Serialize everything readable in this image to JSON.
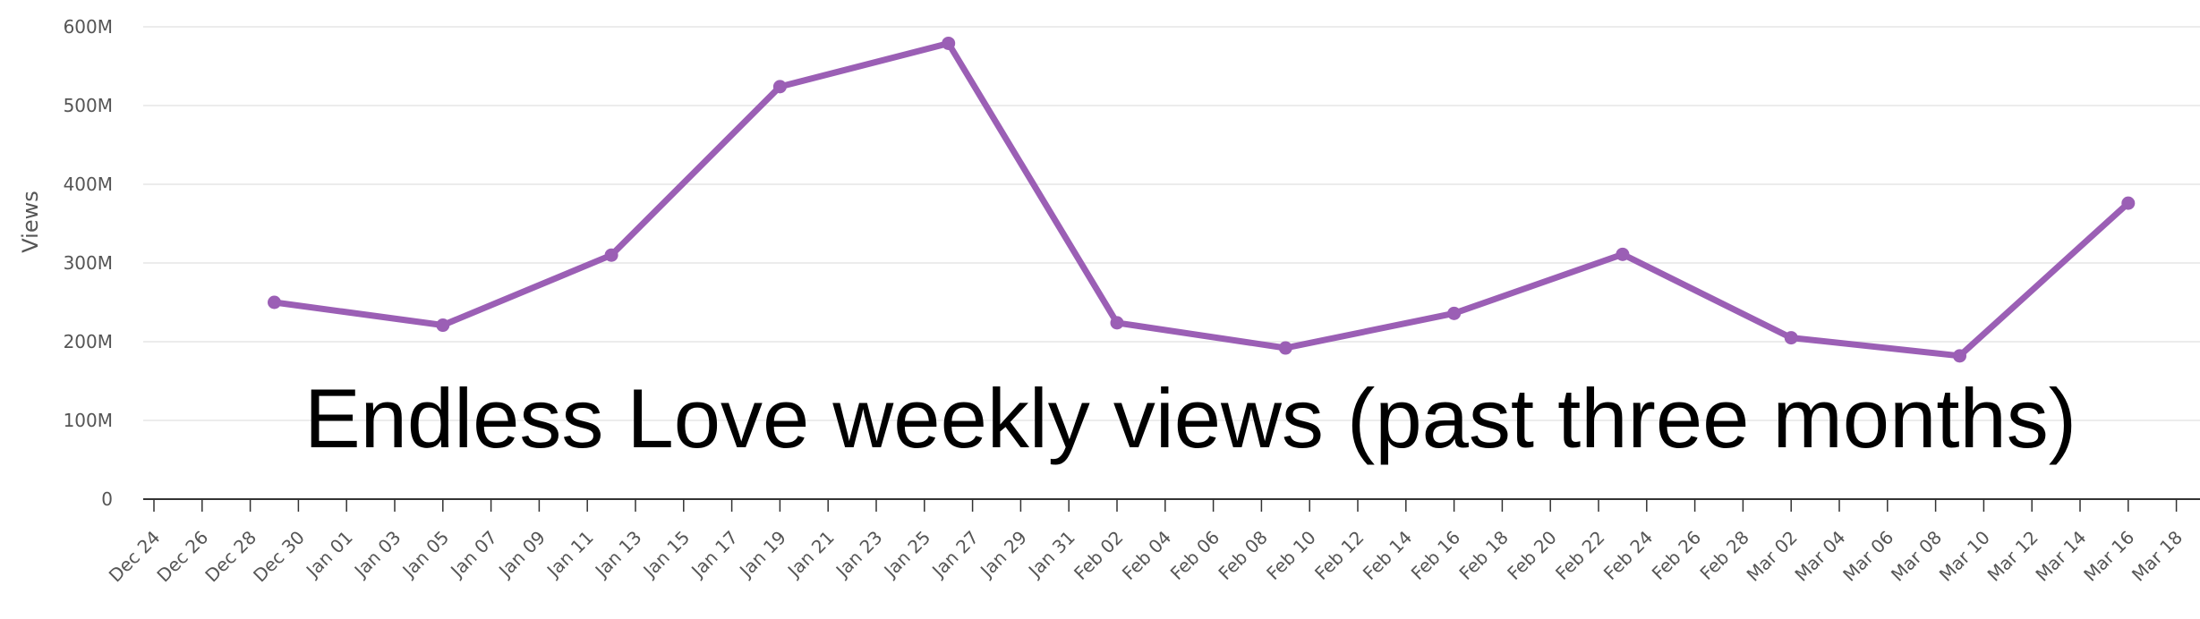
{
  "chart_data": {
    "type": "line",
    "title": "Endless Love weekly views (past three months)",
    "ylabel": "Views",
    "xlabel": "",
    "ylim": [
      0,
      600000000
    ],
    "y_ticks": [
      0,
      100000000,
      200000000,
      300000000,
      400000000,
      500000000,
      600000000
    ],
    "y_tick_labels": [
      "0",
      "100M",
      "200M",
      "300M",
      "400M",
      "500M",
      "600M"
    ],
    "x_range": [
      "2023-12-24",
      "2024-03-18"
    ],
    "x_tick_labels": [
      "Dec 24",
      "Dec 26",
      "Dec 28",
      "Dec 30",
      "Jan 01",
      "Jan 03",
      "Jan 05",
      "Jan 07",
      "Jan 09",
      "Jan 11",
      "Jan 13",
      "Jan 15",
      "Jan 17",
      "Jan 19",
      "Jan 21",
      "Jan 23",
      "Jan 25",
      "Jan 27",
      "Jan 29",
      "Jan 31",
      "Feb 02",
      "Feb 04",
      "Feb 06",
      "Feb 08",
      "Feb 10",
      "Feb 12",
      "Feb 14",
      "Feb 16",
      "Feb 18",
      "Feb 20",
      "Feb 22",
      "Feb 24",
      "Feb 26",
      "Feb 28",
      "Mar 02",
      "Mar 04",
      "Mar 06",
      "Mar 08",
      "Mar 10",
      "Mar 12",
      "Mar 14",
      "Mar 16",
      "Mar 18"
    ],
    "grid": true,
    "legend": "none",
    "series": [
      {
        "color": "#9b5fb5",
        "points": [
          {
            "x": "2023-12-29",
            "y": 250000000
          },
          {
            "x": "2024-01-05",
            "y": 221000000
          },
          {
            "x": "2024-01-12",
            "y": 310000000
          },
          {
            "x": "2024-01-19",
            "y": 524000000
          },
          {
            "x": "2024-01-26",
            "y": 579000000
          },
          {
            "x": "2024-02-02",
            "y": 224000000
          },
          {
            "x": "2024-02-09",
            "y": 192000000
          },
          {
            "x": "2024-02-16",
            "y": 236000000
          },
          {
            "x": "2024-02-23",
            "y": 311000000
          },
          {
            "x": "2024-03-01",
            "y": 205000000
          },
          {
            "x": "2024-03-08",
            "y": 182000000
          },
          {
            "x": "2024-03-15",
            "y": 376000000
          }
        ]
      }
    ]
  }
}
